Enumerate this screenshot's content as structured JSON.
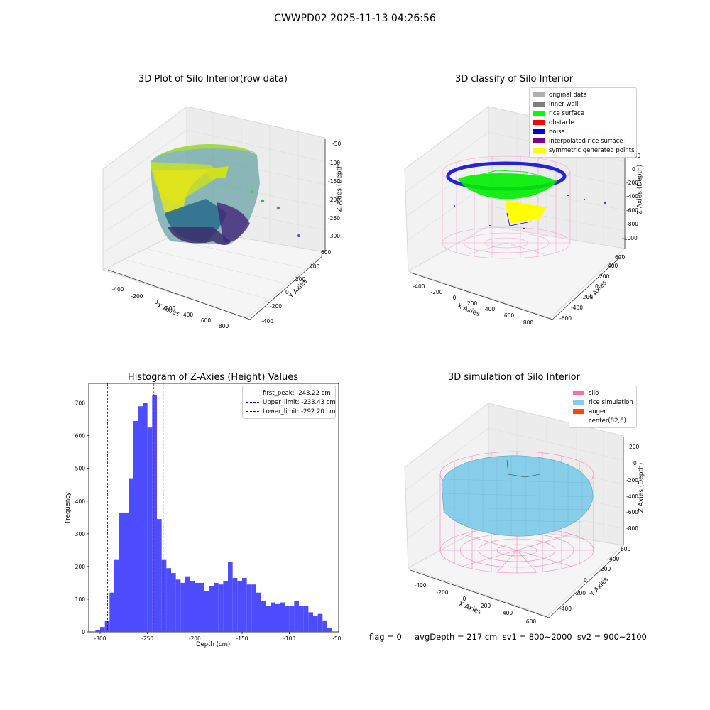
{
  "figure_title": "CWWPD02 2025-11-13 04:26:56",
  "status_line": "flag = 0     avgDepth = 217 cm  sv1 = 800~2000  sv2 = 900~2100",
  "colors": {
    "histogram_bar": "#4d4dff",
    "first_peak_line": "#ff0000",
    "limit_line": "#0000cc",
    "original_data": "#b0b0b0",
    "inner_wall": "#808080",
    "rice_surface": "#00ff00",
    "obstacle": "#ff0000",
    "noise": "#0000dd",
    "interpolated_rice_surface": "#800080",
    "symmetric_generated_points": "#ffff00",
    "silo": "#ff69b4",
    "rice_simulation": "#87ceeb",
    "auger": "#ff4500"
  },
  "chart_data": [
    {
      "type": "scatter",
      "subtype": "3d",
      "title": "3D Plot of Silo Interior(row data)",
      "xlabel": "X Axies",
      "ylabel": "Y Axies",
      "zlabel": "Z Axies (Depth)",
      "x_ticks": [
        "-400",
        "-200",
        "0",
        "200",
        "400",
        "600",
        "800"
      ],
      "y_ticks": [
        "-400",
        "-200",
        "0",
        "200",
        "400",
        "600"
      ],
      "z_ticks": [
        "-50",
        "-100",
        "-150",
        "-200",
        "-250",
        "-300"
      ],
      "colormap": "viridis"
    },
    {
      "type": "scatter",
      "subtype": "3d",
      "title": "3D classify of Silo Interior",
      "xlabel": "X Axies",
      "ylabel": "Y Axies",
      "zlabel": "Z Axies (Depth)",
      "x_ticks": [
        "-400",
        "-200",
        "0",
        "200",
        "400",
        "600",
        "800"
      ],
      "y_ticks": [
        "-600",
        "-400",
        "-200",
        "0",
        "200",
        "400",
        "600"
      ],
      "z_ticks": [
        "200",
        "0",
        "-200",
        "-400",
        "-600",
        "-800",
        "-1000"
      ],
      "legend": [
        "original data",
        "inner wall",
        "rice surface",
        "obstacle",
        "noise",
        "interpolated rice surface",
        "symmetric generated points"
      ],
      "legend_position": "top-right"
    },
    {
      "type": "bar",
      "subtype": "histogram",
      "title": "Histogram of Z-Axies (Height) Values",
      "xlabel": "Depth (cm)",
      "ylabel": "Frequency",
      "xlim": [
        -312,
        -48
      ],
      "ylim": [
        0,
        760
      ],
      "x_ticks": [
        -300,
        -250,
        -200,
        -150,
        -100,
        -50
      ],
      "y_ticks": [
        0,
        100,
        200,
        300,
        400,
        500,
        600,
        700
      ],
      "bin_start": -305,
      "bin_width": 5,
      "values": [
        5,
        15,
        35,
        120,
        220,
        365,
        365,
        470,
        645,
        690,
        700,
        625,
        725,
        345,
        220,
        195,
        180,
        160,
        150,
        170,
        155,
        150,
        150,
        125,
        140,
        150,
        145,
        155,
        215,
        165,
        155,
        165,
        145,
        145,
        120,
        95,
        80,
        90,
        85,
        90,
        80,
        80,
        95,
        80,
        80,
        60,
        50,
        55,
        35,
        12
      ],
      "vlines": [
        {
          "name": "first_peak: -243.22 cm",
          "x": -243.22,
          "color": "#ff0000"
        },
        {
          "name": "Upper_limit: -233.43 cm",
          "x": -233.43,
          "color": "#0000cc"
        },
        {
          "name": "Lower_limit: -292.20 cm",
          "x": -292.2,
          "color": "#0000cc"
        }
      ],
      "legend_position": "top-right"
    },
    {
      "type": "area",
      "subtype": "3d-surface",
      "title": "3D simulation of Silo Interior",
      "xlabel": "X Axies",
      "ylabel": "Y Axies",
      "zlabel": "Z Axies (Depth)",
      "x_ticks": [
        "-400",
        "-200",
        "0",
        "200",
        "400",
        "600"
      ],
      "y_ticks": [
        "-400",
        "-200",
        "0",
        "200",
        "400",
        "600"
      ],
      "z_ticks": [
        "200",
        "0",
        "-200",
        "-400",
        "-600",
        "-800"
      ],
      "legend": [
        "silo",
        "rice simulation",
        "auger",
        "center(82,6)"
      ],
      "legend_position": "top-right"
    }
  ]
}
